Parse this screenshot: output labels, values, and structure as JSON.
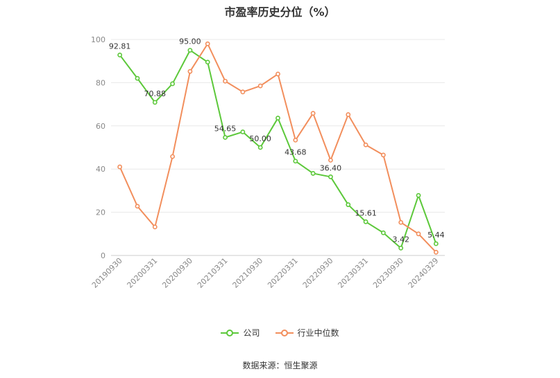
{
  "chart_data": {
    "type": "line",
    "title": "市盈率历史分位（%）",
    "source": "数据来源：恒生聚源",
    "ylim": [
      0,
      100
    ],
    "yticks": [
      0,
      20,
      40,
      60,
      80,
      100
    ],
    "categories": [
      "20190930",
      "20191231",
      "20200331",
      "20200630",
      "20200930",
      "20201231",
      "20210331",
      "20210630",
      "20210930",
      "20211231",
      "20220331",
      "20220630",
      "20220930",
      "20221231",
      "20230331",
      "20230630",
      "20230930",
      "20231231",
      "20240329"
    ],
    "xtick_labels": [
      "20190930",
      "20200331",
      "20200930",
      "20210331",
      "20210930",
      "20220331",
      "20220930",
      "20230331",
      "20230930",
      "20240329"
    ],
    "series": [
      {
        "name": "公司",
        "color": "#5cc83a",
        "values": [
          92.81,
          82,
          70.88,
          79.5,
          95.0,
          89.5,
          54.65,
          57.2,
          50.0,
          63.6,
          43.68,
          38,
          36.4,
          23.5,
          15.61,
          10.5,
          3.42,
          27.8,
          5.44
        ],
        "labels": [
          "92.81",
          null,
          "70.88",
          null,
          "95.00",
          null,
          "54.65",
          null,
          "50.00",
          null,
          "43.68",
          null,
          "36.40",
          null,
          "15.61",
          null,
          "3.42",
          null,
          "5.44"
        ]
      },
      {
        "name": "行业中位数",
        "color": "#f28e5c",
        "values": [
          41,
          22.8,
          13.2,
          45.8,
          85.2,
          98,
          80.7,
          75.7,
          78.5,
          84,
          53.4,
          65.8,
          44.1,
          65.2,
          51.2,
          46.5,
          15.3,
          10,
          1.5
        ],
        "labels": []
      }
    ],
    "grid": true,
    "legend_position": "bottom-center"
  }
}
